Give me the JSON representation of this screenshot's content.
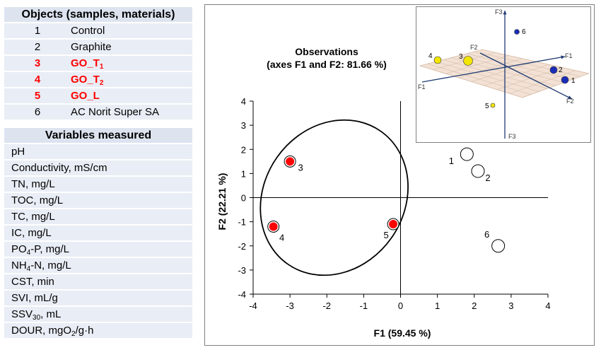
{
  "objects_table": {
    "header": "Objects (samples, materials)",
    "rows": [
      {
        "num": "1",
        "name": "Control",
        "highlight": false
      },
      {
        "num": "2",
        "name": "Graphite",
        "highlight": false
      },
      {
        "num": "3",
        "name": "GO_T",
        "sub": "1",
        "highlight": true
      },
      {
        "num": "4",
        "name": "GO_T",
        "sub": "2",
        "highlight": true
      },
      {
        "num": "5",
        "name": "GO_L",
        "highlight": true
      },
      {
        "num": "6",
        "name": "AC Norit Super SA",
        "highlight": false
      }
    ]
  },
  "variables_table": {
    "header": "Variables measured",
    "rows": [
      {
        "pre": "pH"
      },
      {
        "pre": "Conductivity, mS/cm"
      },
      {
        "pre": "TN, mg/L"
      },
      {
        "pre": "TOC, mg/L"
      },
      {
        "pre": "TC, mg/L"
      },
      {
        "pre": "IC, mg/L"
      },
      {
        "pre": "PO",
        "sub": "4",
        "post": "-P, mg/L"
      },
      {
        "pre": "NH",
        "sub": "4",
        "post": "-N, mg/L"
      },
      {
        "pre": "CST, min"
      },
      {
        "pre": "SVI, mL/g"
      },
      {
        "pre": "SSV",
        "sub": "30",
        "post": ", mL"
      },
      {
        "pre": "DOUR, mgO",
        "sub": "2",
        "post": "/g·h"
      }
    ]
  },
  "chart_data": [
    {
      "type": "scatter",
      "title": "Observations",
      "subtitle": "(axes F1 and F2: 81.66 %)",
      "xlabel": "F1 (59.45 %)",
      "ylabel": "F2 (22.21 %)",
      "xlim": [
        -4,
        4
      ],
      "ylim": [
        -4,
        4
      ],
      "xticks": [
        "-4",
        "-3",
        "-2",
        "-1",
        "0",
        "1",
        "2",
        "3",
        "4"
      ],
      "yticks": [
        "-4",
        "-3",
        "-2",
        "-1",
        "0",
        "1",
        "2",
        "3",
        "4"
      ],
      "grid": false,
      "points": [
        {
          "label": "1",
          "x": 1.8,
          "y": 1.8,
          "highlight": false
        },
        {
          "label": "2",
          "x": 2.1,
          "y": 1.1,
          "highlight": false
        },
        {
          "label": "3",
          "x": -3.0,
          "y": 1.5,
          "highlight": true
        },
        {
          "label": "4",
          "x": -3.45,
          "y": -1.2,
          "highlight": true
        },
        {
          "label": "5",
          "x": -0.2,
          "y": -1.1,
          "highlight": true
        },
        {
          "label": "6",
          "x": 2.65,
          "y": -2.0,
          "highlight": false
        }
      ],
      "ellipse": {
        "cx": -1.8,
        "cy": 0.0,
        "rx": 2.2,
        "ry": 2.9,
        "rotation_deg": -55
      },
      "colors": {
        "highlight": "#ff0000",
        "open": "#ffffff",
        "ellipse": "#000000"
      }
    },
    {
      "type": "scatter-3d",
      "axes": [
        "F1",
        "F2",
        "F3"
      ],
      "points": [
        {
          "label": "1",
          "group": "blue"
        },
        {
          "label": "2",
          "group": "blue"
        },
        {
          "label": "3",
          "group": "yellow"
        },
        {
          "label": "4",
          "group": "yellow"
        },
        {
          "label": "5",
          "group": "yellow"
        },
        {
          "label": "6",
          "group": "blue"
        }
      ],
      "colors": {
        "blue": "#1a2db8",
        "yellow": "#f2e600",
        "plane": "#e8c9b0"
      }
    }
  ]
}
